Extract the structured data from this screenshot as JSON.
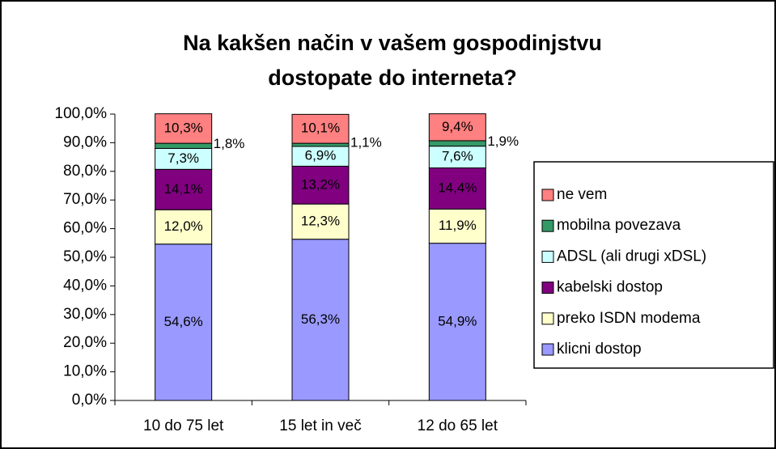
{
  "chart_data": {
    "type": "stacked-bar",
    "title": [
      "Na kakšen način v vašem gospodinjstvu",
      "dostopate do interneta?"
    ],
    "categories": [
      "10 do 75 let",
      "15 let in več",
      "12 do 65 let"
    ],
    "series": [
      {
        "name": "klicni dostop",
        "color": "#9999ff",
        "values": [
          54.6,
          56.3,
          54.9
        ],
        "value_labels": [
          "54,6%",
          "56,3%",
          "54,9%"
        ]
      },
      {
        "name": "preko ISDN modema",
        "color": "#ffffcc",
        "values": [
          12.0,
          12.3,
          11.9
        ],
        "value_labels": [
          "12,0%",
          "12,3%",
          "11,9%"
        ]
      },
      {
        "name": "kabelski dostop",
        "color": "#800080",
        "values": [
          14.1,
          13.2,
          14.4
        ],
        "value_labels": [
          "14,1%",
          "13,2%",
          "14,4%"
        ]
      },
      {
        "name": "ADSL (ali drugi xDSL)",
        "color": "#ccffff",
        "values": [
          7.3,
          6.9,
          7.6
        ],
        "value_labels": [
          "7,3%",
          "6,9%",
          "7,6%"
        ]
      },
      {
        "name": "mobilna povezava",
        "color": "#339966",
        "values": [
          1.8,
          1.1,
          1.9
        ],
        "value_labels": [
          "1,8%",
          "1,1%",
          "1,9%"
        ]
      },
      {
        "name": "ne vem",
        "color": "#ff8080",
        "values": [
          10.3,
          10.1,
          9.4
        ],
        "value_labels": [
          "10,3%",
          "10,1%",
          "9,4%"
        ]
      }
    ],
    "ylim": [
      0,
      100
    ],
    "yticks": [
      {
        "value": 0,
        "label": "0,0%"
      },
      {
        "value": 10,
        "label": "10,0%"
      },
      {
        "value": 20,
        "label": "20,0%"
      },
      {
        "value": 30,
        "label": "30,0%"
      },
      {
        "value": 40,
        "label": "40,0%"
      },
      {
        "value": 50,
        "label": "50,0%"
      },
      {
        "value": 60,
        "label": "60,0%"
      },
      {
        "value": 70,
        "label": "70,0%"
      },
      {
        "value": 80,
        "label": "80,0%"
      },
      {
        "value": 90,
        "label": "90,0%"
      },
      {
        "value": 100,
        "label": "100,0%"
      }
    ],
    "legend": "right"
  }
}
